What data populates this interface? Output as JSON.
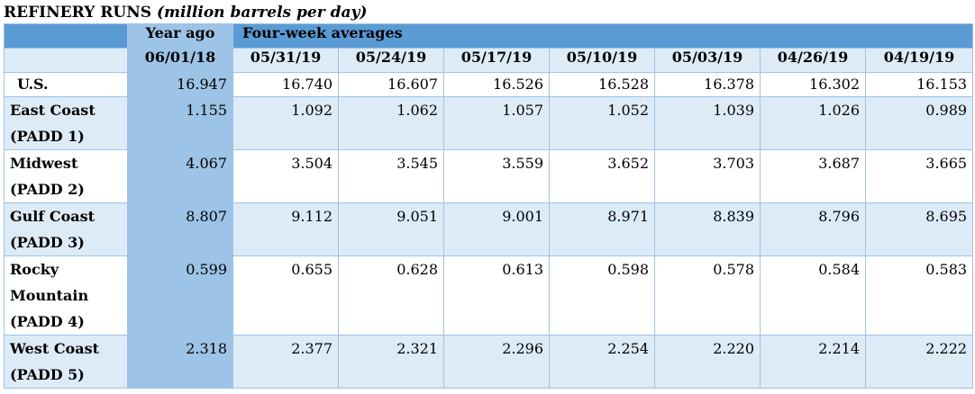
{
  "title": {
    "main": "REFINERY RUNS",
    "sub": "(million barrels per day)"
  },
  "header": {
    "year_ago": "Year ago",
    "four_week": "Four-week averages",
    "dates": [
      "06/01/18",
      "05/31/19",
      "05/24/19",
      "05/17/19",
      "05/10/19",
      "05/03/19",
      "04/26/19",
      "04/19/19"
    ]
  },
  "rows": [
    {
      "label_lines": [
        "U.S."
      ],
      "values": [
        "16.947",
        "16.740",
        "16.607",
        "16.526",
        "16.528",
        "16.378",
        "16.302",
        "16.153"
      ]
    },
    {
      "label_lines": [
        "East Coast",
        "(PADD 1)"
      ],
      "values": [
        "1.155",
        "1.092",
        "1.062",
        "1.057",
        "1.052",
        "1.039",
        "1.026",
        "0.989"
      ]
    },
    {
      "label_lines": [
        "Midwest",
        "(PADD 2)"
      ],
      "values": [
        "4.067",
        "3.504",
        "3.545",
        "3.559",
        "3.652",
        "3.703",
        "3.687",
        "3.665"
      ]
    },
    {
      "label_lines": [
        "Gulf Coast",
        "(PADD 3)"
      ],
      "values": [
        "8.807",
        "9.112",
        "9.051",
        "9.001",
        "8.971",
        "8.839",
        "8.796",
        "8.695"
      ]
    },
    {
      "label_lines": [
        "Rocky",
        "Mountain",
        "(PADD 4)"
      ],
      "values": [
        "0.599",
        "0.655",
        "0.628",
        "0.613",
        "0.598",
        "0.578",
        "0.584",
        "0.583"
      ]
    },
    {
      "label_lines": [
        "West Coast",
        "(PADD 5)"
      ],
      "values": [
        "2.318",
        "2.377",
        "2.321",
        "2.296",
        "2.254",
        "2.220",
        "2.214",
        "2.222"
      ]
    }
  ]
}
